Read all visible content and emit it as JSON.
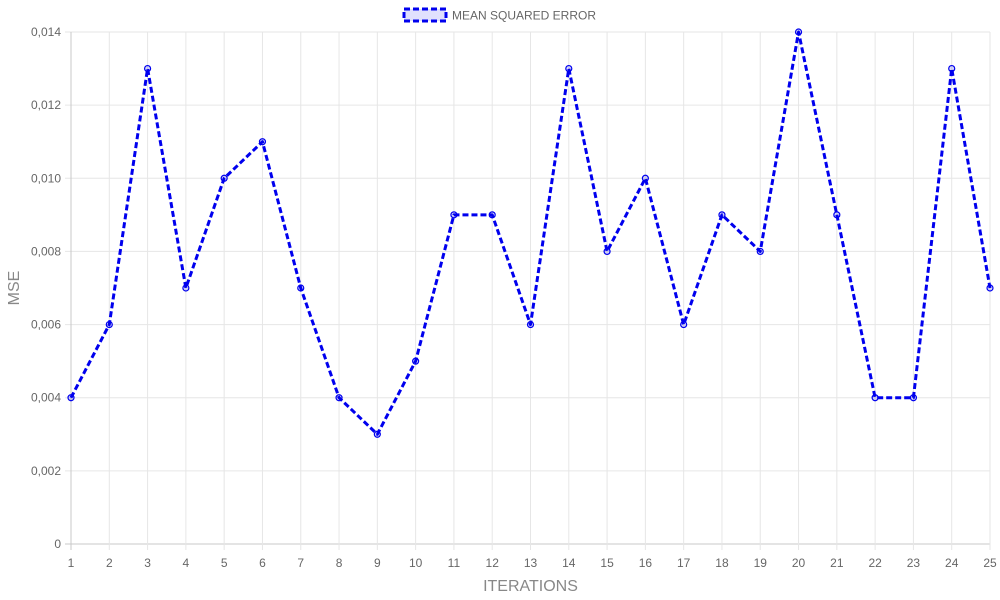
{
  "chart_data": {
    "type": "line",
    "legend": {
      "position": "top",
      "entries": [
        "MEAN SQUARED ERROR"
      ]
    },
    "xlabel": "ITERATIONS",
    "ylabel": "MSE",
    "x": [
      1,
      2,
      3,
      4,
      5,
      6,
      7,
      8,
      9,
      10,
      11,
      12,
      13,
      14,
      15,
      16,
      17,
      18,
      19,
      20,
      21,
      22,
      23,
      24,
      25
    ],
    "series": [
      {
        "name": "MEAN SQUARED ERROR",
        "color": "#0000ee",
        "line_style": "dashed",
        "values": [
          0.004,
          0.006,
          0.013,
          0.007,
          0.01,
          0.011,
          0.007,
          0.004,
          0.003,
          0.005,
          0.009,
          0.009,
          0.006,
          0.013,
          0.008,
          0.01,
          0.006,
          0.009,
          0.008,
          0.014,
          0.009,
          0.004,
          0.004,
          0.013,
          0.007
        ]
      }
    ],
    "ylim": [
      0,
      0.014
    ],
    "y_ticks": [
      "0",
      "0,002",
      "0,004",
      "0,006",
      "0,008",
      "0,010",
      "0,012",
      "0,014"
    ],
    "grid": true,
    "grid_color": "#e6e6e6"
  }
}
